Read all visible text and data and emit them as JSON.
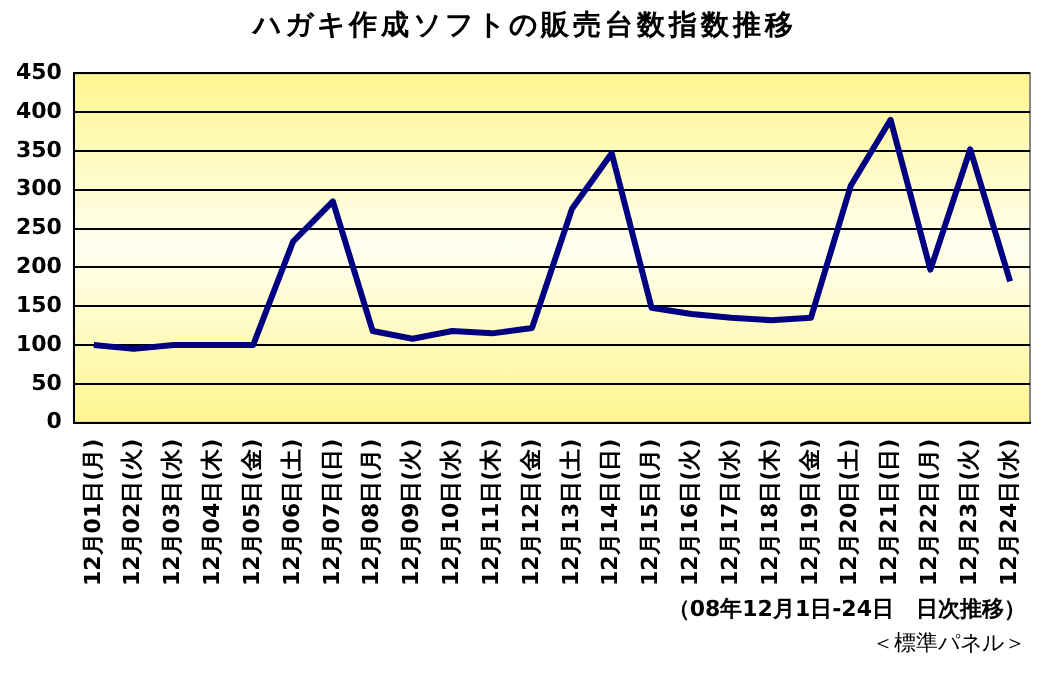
{
  "chart_data": {
    "type": "line",
    "title": "ハガキ作成ソフトの販売台数指数推移",
    "categories": [
      "12月01日(月)",
      "12月02日(火)",
      "12月03日(水)",
      "12月04日(木)",
      "12月05日(金)",
      "12月06日(土)",
      "12月07日(日)",
      "12月08日(月)",
      "12月09日(火)",
      "12月10日(水)",
      "12月11日(木)",
      "12月12日(金)",
      "12月13日(土)",
      "12月14日(日)",
      "12月15日(月)",
      "12月16日(火)",
      "12月17日(水)",
      "12月18日(木)",
      "12月19日(金)",
      "12月20日(土)",
      "12月21日(日)",
      "12月22日(月)",
      "12月23日(火)",
      "12月24日(水)"
    ],
    "series": [
      {
        "color": "#000080",
        "values": [
          100,
          95,
          100,
          100,
          100,
          233,
          285,
          118,
          108,
          118,
          115,
          122,
          275,
          347,
          148,
          140,
          135,
          132,
          135,
          305,
          390,
          197,
          352,
          182
        ]
      }
    ],
    "ylim": [
      0,
      450
    ],
    "yticks": [
      0,
      50,
      100,
      150,
      200,
      250,
      300,
      350,
      400,
      450
    ],
    "grid": "y",
    "legend": false,
    "marker": "none",
    "annotations": [
      "（08年12月1日-24日　日次推移）",
      "＜標準パネル＞"
    ]
  }
}
